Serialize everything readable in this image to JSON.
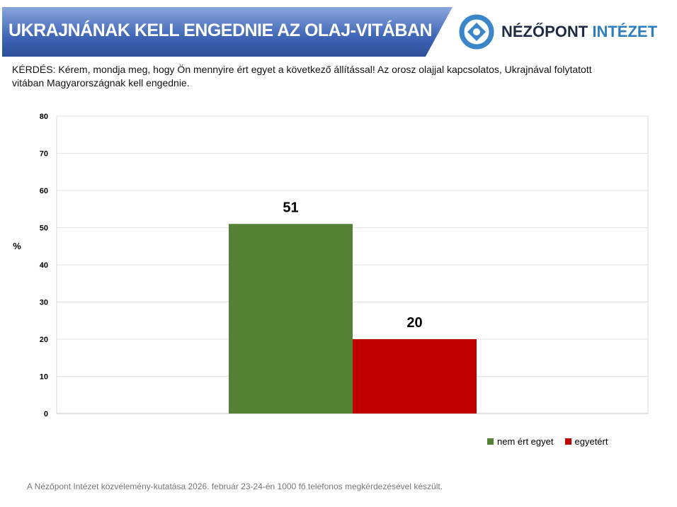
{
  "header": {
    "title": "UKRAJNÁNAK KELL ENGEDNIE AZ OLAJ-VITÁBAN",
    "logo_text_1": "NÉZŐPONT",
    "logo_text_2": "INTÉZET"
  },
  "question": "KÉRDÉS: Kérem, mondja meg, hogy Ön mennyire ért egyet a következő állítással! Az orosz olajjal kapcsolatos, Ukrajnával folytatott vitában Magyarországnak kell engednie.",
  "footer": "A Nézőpont Intézet közvélemény-kutatása 2026. február 23-24-én 1000 fő telefonos megkérdezésével készült.",
  "chart_data": {
    "type": "bar",
    "ylabel": "%",
    "ylim": [
      0,
      80
    ],
    "yticks": [
      0,
      10,
      20,
      30,
      40,
      50,
      60,
      70,
      80
    ],
    "grid": true,
    "legend_position": "bottom-right",
    "series": [
      {
        "name": "nem ért egyet",
        "value": 51,
        "color": "#548235"
      },
      {
        "name": "egyetért",
        "value": 20,
        "color": "#c00000"
      }
    ]
  }
}
